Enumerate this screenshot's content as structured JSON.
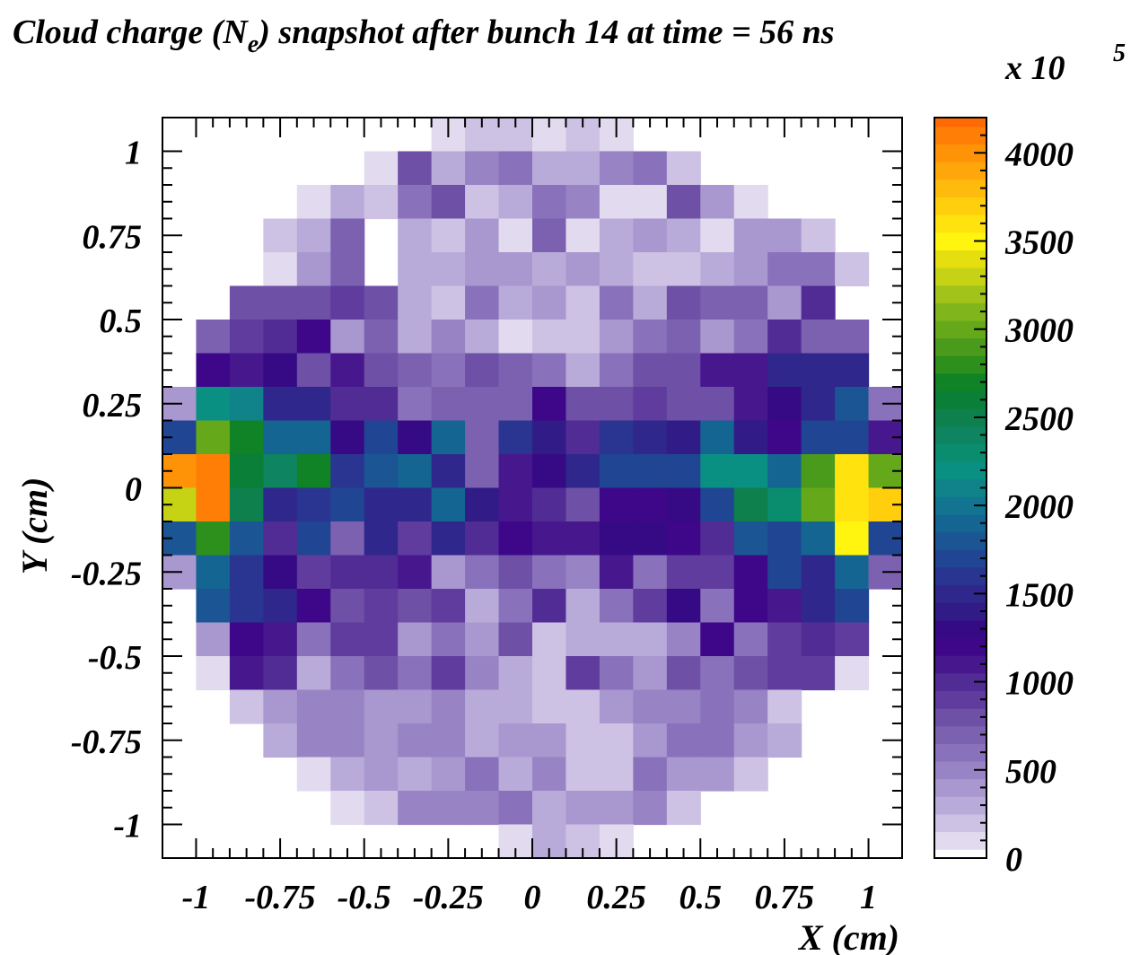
{
  "chart_data": {
    "type": "heatmap",
    "title_main": "Cloud charge (N",
    "title_sub": "e",
    "title_rest": ") snapshot after bunch 14 at time = 56 ns",
    "scale_label": "x 10",
    "scale_exponent": "5",
    "xlabel": "X (cm)",
    "ylabel": "Y (cm)",
    "xlim": [
      -1.1,
      1.1
    ],
    "ylim": [
      -1.1,
      1.1
    ],
    "zlim": [
      0,
      4200
    ],
    "x_ticks": [
      "-1",
      "-0.75",
      "-0.5",
      "-0.25",
      "0",
      "0.25",
      "0.5",
      "0.75",
      "1"
    ],
    "x_tick_values": [
      -1,
      -0.75,
      -0.5,
      -0.25,
      0,
      0.25,
      0.5,
      0.75,
      1
    ],
    "y_ticks": [
      "1",
      "0.75",
      "0.5",
      "0.25",
      "0",
      "-0.25",
      "-0.5",
      "-0.75",
      "-1"
    ],
    "y_tick_values": [
      1,
      0.75,
      0.5,
      0.25,
      0,
      -0.25,
      -0.5,
      -0.75,
      -1
    ],
    "z_ticks": [
      "4000",
      "3500",
      "3000",
      "2500",
      "2000",
      "1500",
      "1000",
      "500",
      "0"
    ],
    "z_tick_values": [
      4000,
      3500,
      3000,
      2500,
      2000,
      1500,
      1000,
      500,
      0
    ],
    "nx": 22,
    "ny": 22,
    "cell_size": 0.1,
    "grid_origin": [
      -1.1,
      -1.1
    ],
    "rows_top_to_bottom": [
      [
        0,
        0,
        0,
        0,
        0,
        0,
        0,
        0,
        100,
        200,
        200,
        100,
        200,
        100,
        0,
        0,
        0,
        0,
        0,
        0,
        0,
        0
      ],
      [
        0,
        0,
        0,
        0,
        0,
        0,
        100,
        750,
        300,
        450,
        550,
        300,
        300,
        450,
        550,
        200,
        0,
        0,
        0,
        0,
        0,
        0
      ],
      [
        0,
        0,
        0,
        0,
        100,
        300,
        200,
        550,
        750,
        200,
        300,
        550,
        450,
        100,
        100,
        750,
        400,
        100,
        0,
        0,
        0,
        0
      ],
      [
        0,
        0,
        0,
        200,
        300,
        650,
        0,
        300,
        200,
        400,
        100,
        650,
        100,
        300,
        400,
        300,
        100,
        400,
        400,
        200,
        0,
        0
      ],
      [
        0,
        0,
        0,
        100,
        400,
        650,
        0,
        300,
        300,
        400,
        400,
        300,
        400,
        300,
        200,
        200,
        300,
        400,
        550,
        550,
        200,
        0
      ],
      [
        0,
        0,
        750,
        800,
        800,
        850,
        750,
        300,
        200,
        550,
        300,
        400,
        200,
        550,
        300,
        750,
        650,
        650,
        400,
        950,
        0,
        0
      ],
      [
        0,
        650,
        850,
        950,
        1200,
        400,
        650,
        300,
        450,
        300,
        100,
        200,
        200,
        400,
        550,
        650,
        400,
        550,
        950,
        700,
        700,
        0
      ],
      [
        0,
        1200,
        1050,
        1250,
        750,
        1050,
        750,
        650,
        550,
        750,
        650,
        550,
        300,
        550,
        750,
        800,
        1050,
        1050,
        1450,
        1450,
        1500,
        0
      ],
      [
        400,
        2200,
        2050,
        1450,
        1450,
        950,
        950,
        600,
        700,
        700,
        650,
        1200,
        750,
        800,
        850,
        750,
        800,
        1050,
        1300,
        1450,
        1800,
        600
      ],
      [
        1700,
        2950,
        2650,
        1900,
        1900,
        1250,
        1650,
        1250,
        1900,
        700,
        1550,
        1350,
        1000,
        1550,
        1450,
        1400,
        1850,
        1350,
        1200,
        1700,
        1700,
        1100
      ],
      [
        3950,
        4100,
        2550,
        2350,
        2650,
        1550,
        1750,
        1900,
        1450,
        700,
        1100,
        1250,
        1450,
        1700,
        1650,
        1700,
        2150,
        2150,
        1850,
        2850,
        3600,
        2950
      ],
      [
        3250,
        4050,
        2500,
        1450,
        1600,
        1700,
        1450,
        1450,
        1850,
        1400,
        1050,
        950,
        800,
        1200,
        1150,
        1300,
        1700,
        2450,
        2250,
        3000,
        3550,
        3700
      ],
      [
        1800,
        2800,
        1750,
        1000,
        1700,
        650,
        1450,
        850,
        1450,
        1000,
        1200,
        1050,
        1100,
        1250,
        1250,
        1150,
        950,
        1800,
        1650,
        1850,
        3450,
        1650
      ],
      [
        400,
        1900,
        1550,
        1250,
        850,
        950,
        950,
        1100,
        400,
        550,
        800,
        550,
        500,
        1050,
        550,
        850,
        850,
        1200,
        1650,
        1450,
        1850,
        700
      ],
      [
        0,
        1800,
        1550,
        1450,
        1150,
        800,
        850,
        800,
        850,
        300,
        550,
        950,
        300,
        600,
        850,
        1300,
        600,
        1150,
        1050,
        1500,
        1700,
        0
      ],
      [
        0,
        400,
        1150,
        1050,
        600,
        900,
        850,
        350,
        550,
        400,
        800,
        200,
        300,
        300,
        300,
        450,
        1200,
        550,
        850,
        950,
        850,
        0
      ],
      [
        0,
        100,
        1100,
        950,
        300,
        550,
        800,
        600,
        850,
        450,
        300,
        200,
        850,
        600,
        400,
        750,
        600,
        750,
        850,
        850,
        100,
        0
      ],
      [
        0,
        0,
        200,
        400,
        450,
        450,
        400,
        400,
        450,
        300,
        300,
        200,
        200,
        400,
        450,
        450,
        550,
        450,
        200,
        0,
        0,
        0
      ],
      [
        0,
        0,
        0,
        300,
        450,
        450,
        400,
        450,
        450,
        300,
        350,
        350,
        200,
        200,
        400,
        550,
        550,
        350,
        300,
        0,
        0,
        0
      ],
      [
        0,
        0,
        0,
        0,
        100,
        300,
        400,
        300,
        400,
        550,
        300,
        450,
        200,
        200,
        550,
        350,
        350,
        200,
        0,
        0,
        0,
        0
      ],
      [
        0,
        0,
        0,
        0,
        0,
        100,
        200,
        450,
        450,
        500,
        600,
        300,
        400,
        400,
        450,
        200,
        0,
        0,
        0,
        0,
        0,
        0
      ],
      [
        0,
        0,
        0,
        0,
        0,
        0,
        0,
        0,
        0,
        0,
        100,
        300,
        200,
        100,
        0,
        0,
        0,
        0,
        0,
        0,
        0,
        0
      ]
    ],
    "palette_step": 100,
    "palette": [
      "#ffffff",
      "#e2dbef",
      "#cdc2e4",
      "#b9abd9",
      "#a997cf",
      "#9883c4",
      "#8a71bb",
      "#7c61b1",
      "#6e50a6",
      "#5f3c9d",
      "#522c95",
      "#47178d",
      "#3e078a",
      "#360a84",
      "#311b86",
      "#2f278b",
      "#293590",
      "#204592",
      "#1b5593",
      "#156593",
      "#127491",
      "#0f8389",
      "#0a8f83",
      "#0a8c6f",
      "#0e8560",
      "#0d804d",
      "#0a7f37",
      "#0f8325",
      "#2d8f1c",
      "#4a9b1c",
      "#65a91b",
      "#80b51b",
      "#a2c31a",
      "#c6d214",
      "#e5df10",
      "#fff50f",
      "#ffe20e",
      "#ffce0d",
      "#ffbb0c",
      "#ffa70a",
      "#ff9308",
      "#ff7f06",
      "#ff6a05",
      "#ff5203",
      "#ff3502",
      "#ff1a01",
      "#ff0000"
    ]
  }
}
